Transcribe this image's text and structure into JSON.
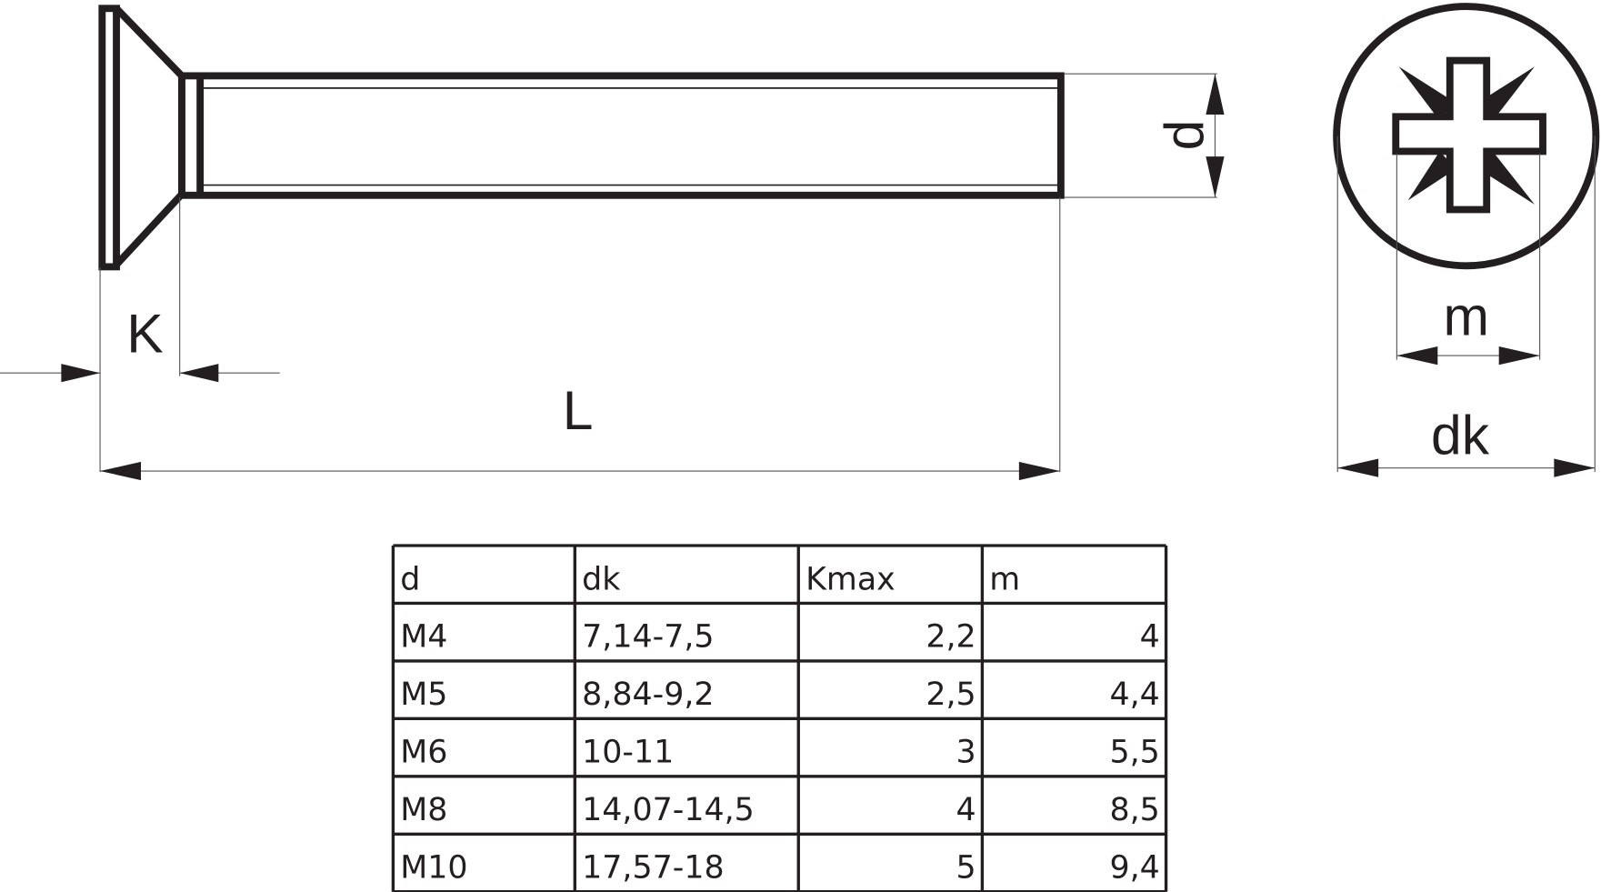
{
  "drawing": {
    "labels": {
      "d": "d",
      "K": "K",
      "L": "L",
      "m": "m",
      "dk": "dk"
    }
  },
  "table": {
    "headers": [
      "d",
      "dk",
      "Kmax",
      "m"
    ],
    "rows": [
      [
        "M4",
        "7,14-7,5",
        "2,2",
        "4"
      ],
      [
        "M5",
        "8,84-9,2",
        "2,5",
        "4,4"
      ],
      [
        "M6",
        "10-11",
        "3",
        "5,5"
      ],
      [
        "M8",
        "14,07-14,5",
        "4",
        "8,5"
      ],
      [
        "M10",
        "17,57-18",
        "5",
        "9,4"
      ]
    ]
  }
}
